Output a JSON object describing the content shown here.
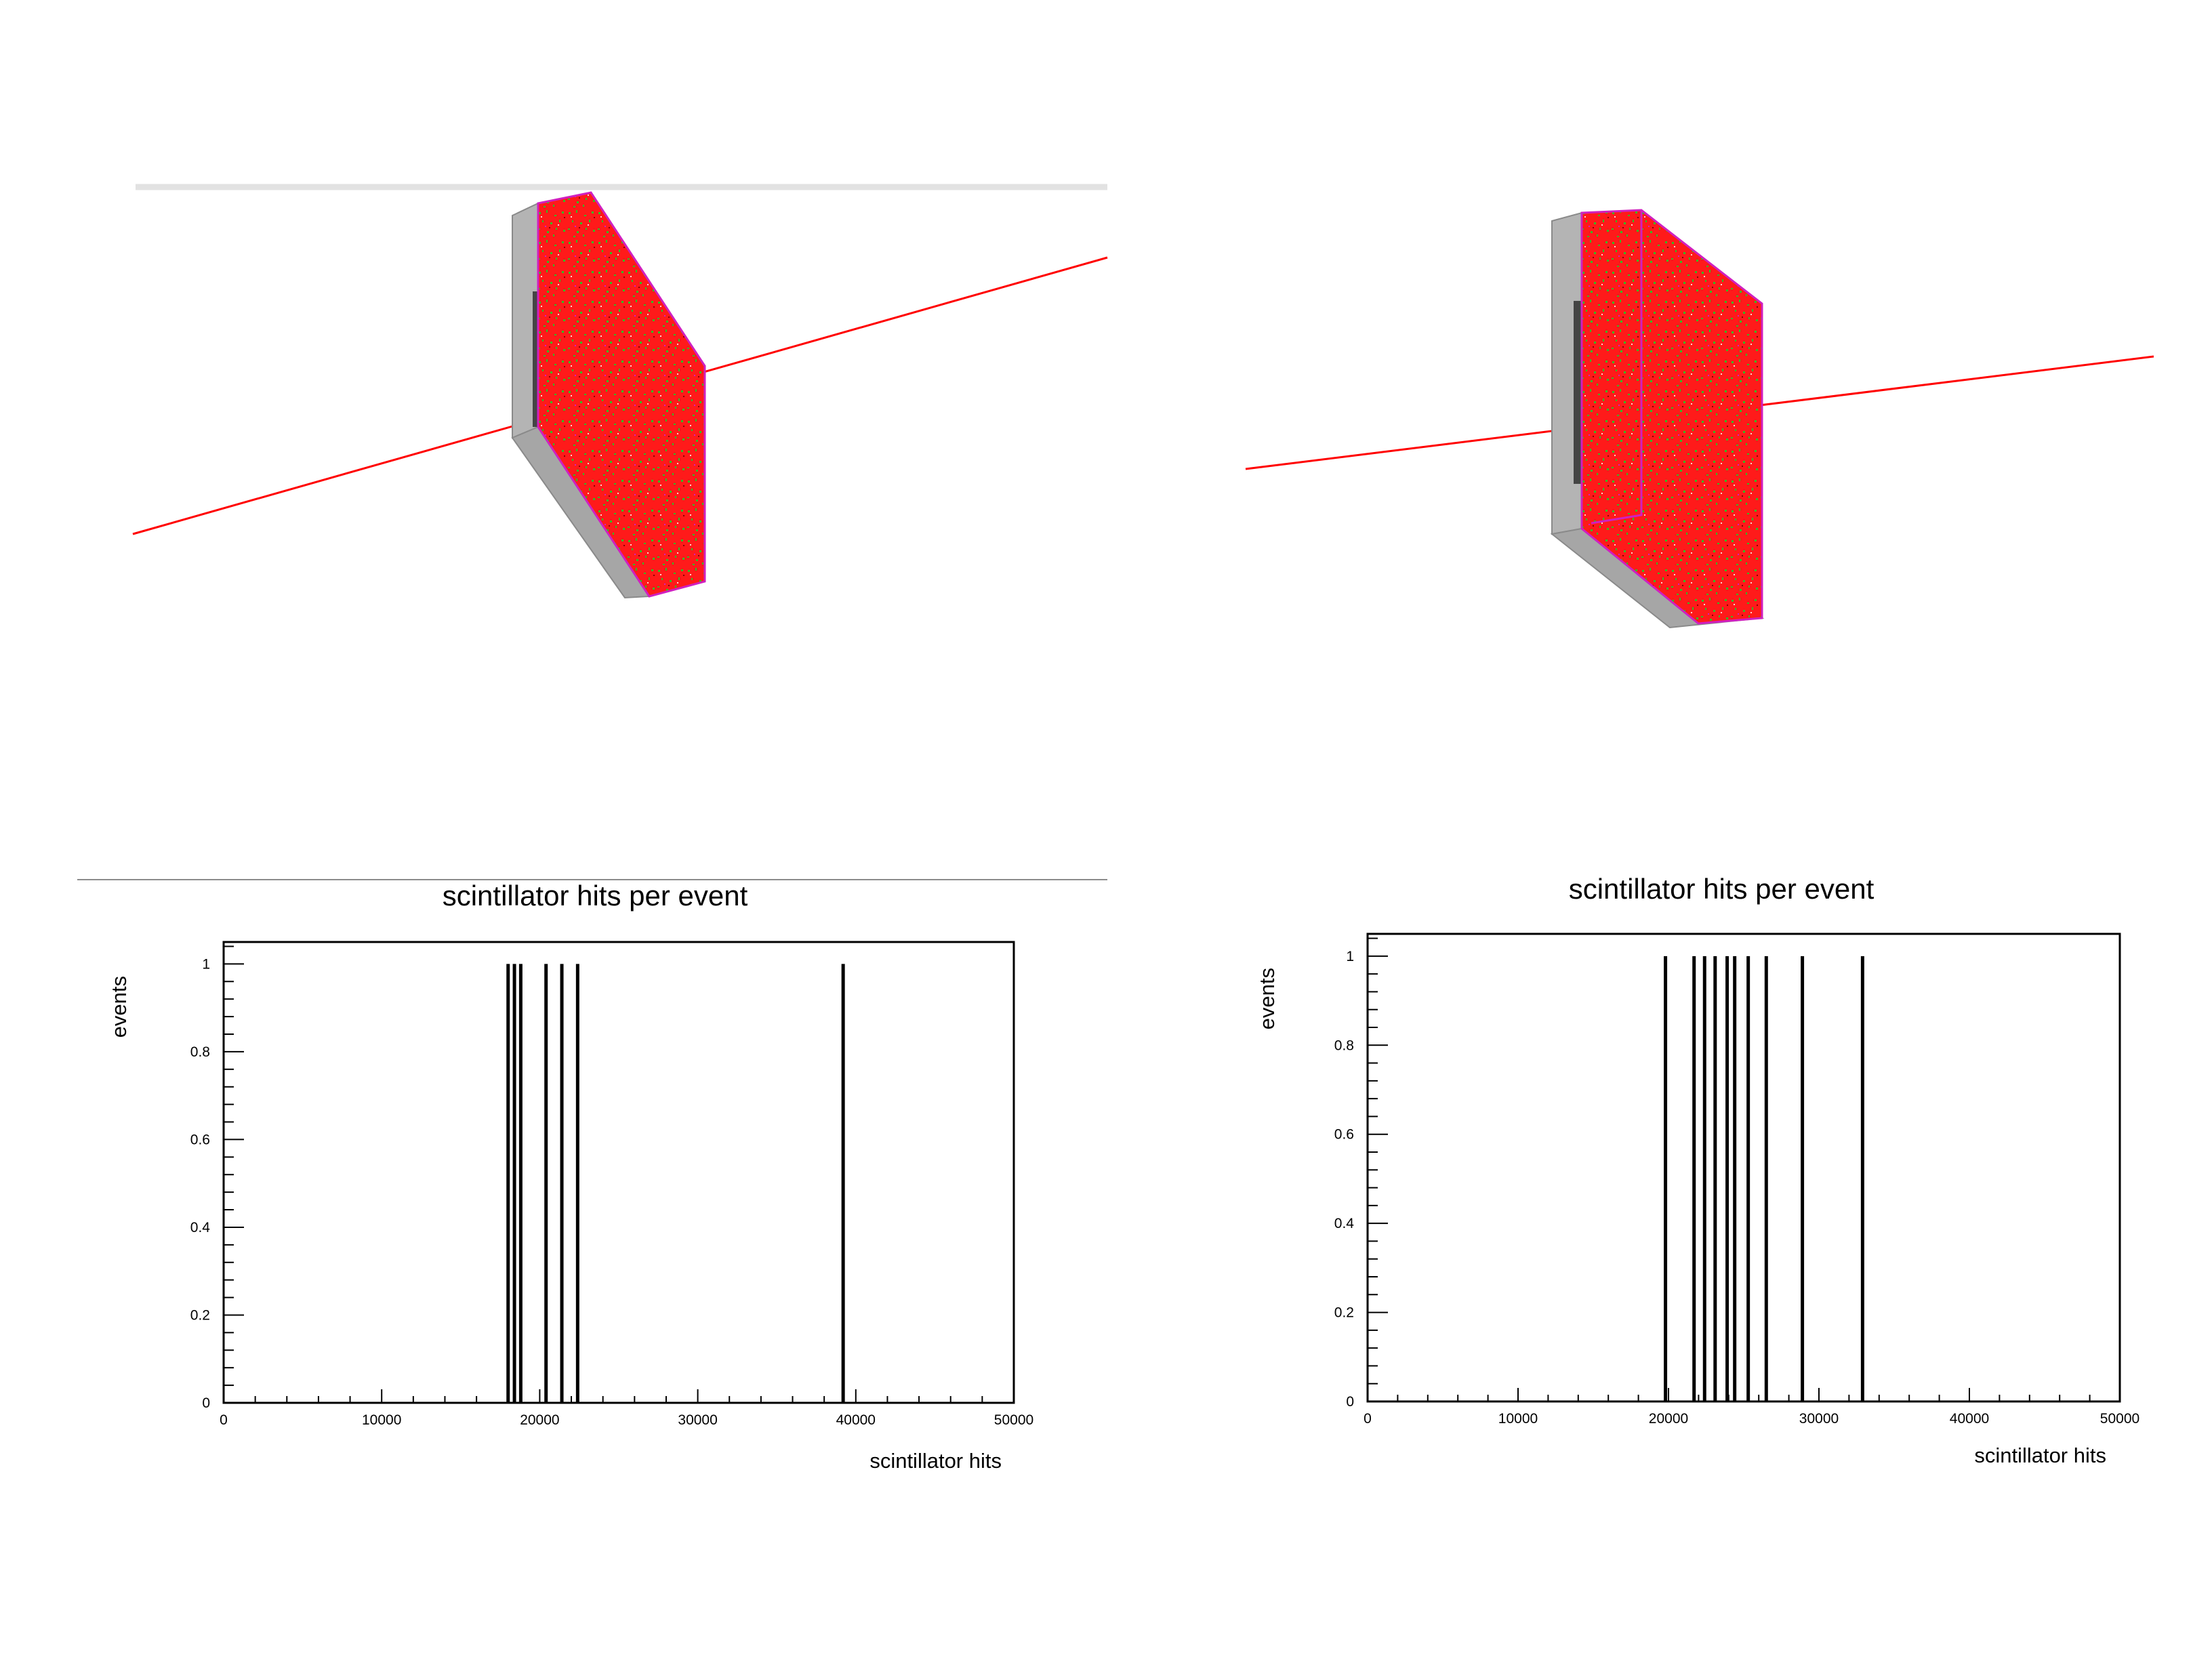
{
  "colors": {
    "track": "#ff0000",
    "hits_primary": "#ff1a1a",
    "hits_secondary": "#33bb22",
    "detector_edge": "#d020c0",
    "detector_body": "#b4b4b4",
    "bars": "#000000"
  },
  "chart_data": [
    {
      "type": "bar",
      "title": "scintillator hits per event",
      "xlabel": "scintillator hits",
      "ylabel": "events",
      "xlim": [
        0,
        50000
      ],
      "ylim": [
        0,
        1.05
      ],
      "x_ticks": [
        0,
        10000,
        20000,
        30000,
        40000,
        50000
      ],
      "y_ticks": [
        0,
        0.2,
        0.4,
        0.6,
        0.8,
        1
      ],
      "x_tick_labels": [
        "0",
        "10000",
        "20000",
        "30000",
        "40000",
        "50000"
      ],
      "y_tick_labels": [
        "0",
        "0.2",
        "0.4",
        "0.6",
        "0.8",
        "1"
      ],
      "grid": false,
      "x": [
        18000,
        18400,
        18800,
        20400,
        21400,
        22400,
        39200
      ],
      "values": [
        1,
        1,
        1,
        1,
        1,
        1,
        1
      ]
    },
    {
      "type": "bar",
      "title": "scintillator hits per event",
      "xlabel": "scintillator hits",
      "ylabel": "events",
      "xlim": [
        0,
        50000
      ],
      "ylim": [
        0,
        1.05
      ],
      "x_ticks": [
        0,
        10000,
        20000,
        30000,
        40000,
        50000
      ],
      "y_ticks": [
        0,
        0.2,
        0.4,
        0.6,
        0.8,
        1
      ],
      "x_tick_labels": [
        "0",
        "10000",
        "20000",
        "30000",
        "40000",
        "50000"
      ],
      "y_tick_labels": [
        "0",
        "0.2",
        "0.4",
        "0.6",
        "0.8",
        "1"
      ],
      "grid": false,
      "x": [
        19800,
        21700,
        22400,
        23100,
        23900,
        24400,
        25300,
        26500,
        28900,
        32900
      ],
      "values": [
        1,
        1,
        1,
        1,
        1,
        1,
        1,
        1,
        1,
        1
      ]
    }
  ]
}
